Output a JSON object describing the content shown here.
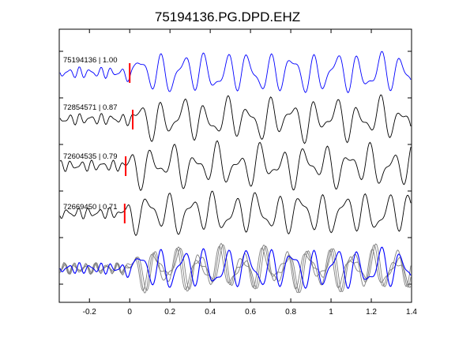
{
  "chart_data": {
    "type": "line",
    "title": "75194136.PG.DPD.EHZ",
    "xlabel": "",
    "ylabel": "",
    "xlim": [
      -0.35,
      1.4
    ],
    "xticks": [
      -0.2,
      0,
      0.2,
      0.4,
      0.6,
      0.8,
      1,
      1.2,
      1.4
    ],
    "xtick_labels": [
      "-0.2",
      "0",
      "0.2",
      "0.4",
      "0.6",
      "0.8",
      "1",
      "1.2",
      "1.4"
    ],
    "grid": false,
    "colors": {
      "master": "#0000ff",
      "trace": "#000000",
      "stack": "#808080",
      "pick": "#ff0000"
    },
    "traces": [
      {
        "label": "75194136 | 1.00",
        "pick_time": 0.0,
        "color": "#0000ff"
      },
      {
        "label": "72854571 | 0.87",
        "pick_time": 0.015,
        "color": "#000000"
      },
      {
        "label": "72604535 | 0.79",
        "pick_time": -0.02,
        "color": "#000000"
      },
      {
        "label": "72669450 | 0.71",
        "pick_time": -0.025,
        "color": "#000000"
      }
    ],
    "overlay": {
      "count": 4,
      "master_color": "#0000ff",
      "other_color": "#808080"
    }
  }
}
